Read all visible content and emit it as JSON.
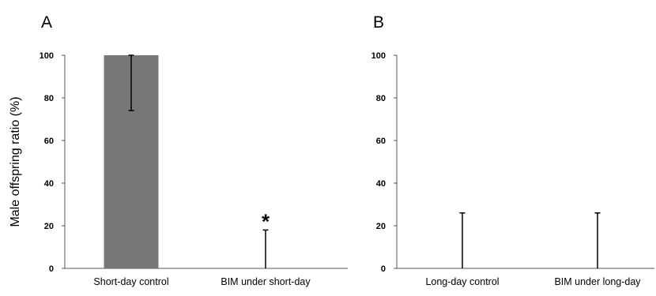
{
  "figure": {
    "ylabel": "Male offspring ratio (%)"
  },
  "chart_data": [
    {
      "type": "bar",
      "panel": "A",
      "categories": [
        "Short-day control",
        "BIM under short-day"
      ],
      "values": [
        100,
        0
      ],
      "error_bars": [
        {
          "low": 74,
          "high": 100
        },
        {
          "low": 0,
          "high": 18
        }
      ],
      "annotations": [
        {
          "category": "BIM under short-day",
          "text": "*"
        }
      ],
      "ylabel": "Male offspring ratio (%)",
      "xlabel": "",
      "ylim": [
        0,
        100
      ],
      "yticks": [
        0,
        20,
        40,
        60,
        80,
        100
      ],
      "bar_color": "#777777",
      "grid": false
    },
    {
      "type": "bar",
      "panel": "B",
      "categories": [
        "Long-day control",
        "BIM under long-day"
      ],
      "values": [
        0,
        0
      ],
      "error_bars": [
        {
          "low": 0,
          "high": 26
        },
        {
          "low": 0,
          "high": 26
        }
      ],
      "annotations": [],
      "ylabel": "",
      "xlabel": "",
      "ylim": [
        0,
        100
      ],
      "yticks": [
        0,
        20,
        40,
        60,
        80,
        100
      ],
      "bar_color": "#777777",
      "grid": false
    }
  ]
}
